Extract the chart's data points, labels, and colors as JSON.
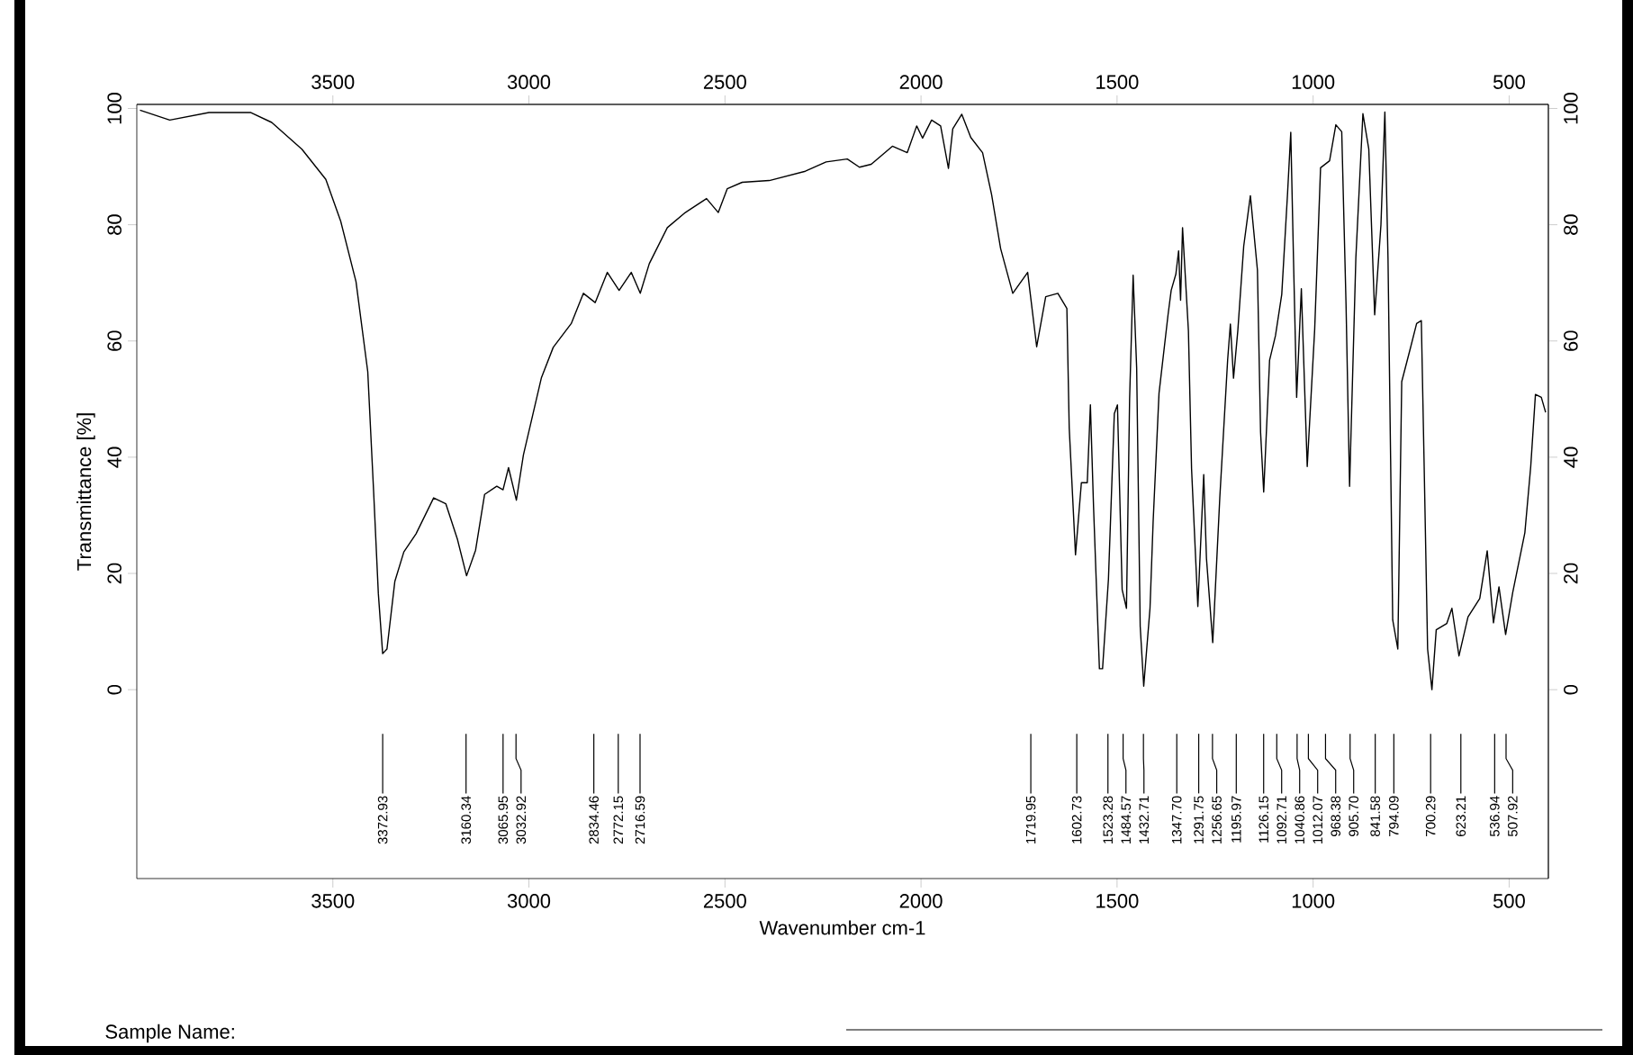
{
  "chart_data": {
    "type": "line",
    "xlabel": "Wavenumber cm-1",
    "ylabel": "Transmittance [%]",
    "xlim": [
      4000,
      400
    ],
    "xticks": [
      3500,
      3000,
      2500,
      2000,
      1500,
      1000,
      500
    ],
    "x2lim": [
      4000,
      400
    ],
    "x2ticks": [
      3500,
      3000,
      2500,
      2000,
      1500,
      1000,
      500
    ],
    "ylim": [
      -32.5,
      100.7
    ],
    "yticks": [
      0,
      20,
      40,
      60,
      80,
      100
    ],
    "y2lim": [
      -32.5,
      100.7
    ],
    "y2ticks": [
      0,
      20,
      40,
      60,
      80,
      100
    ],
    "color": "#000000",
    "x": [
      3992,
      3916,
      3816,
      3709,
      3656,
      3579,
      3518,
      3480,
      3441,
      3411,
      3396,
      3384,
      3373,
      3362,
      3342,
      3319,
      3288,
      3243,
      3212,
      3182,
      3159,
      3136,
      3113,
      3082,
      3066,
      3052,
      3032,
      3014,
      2968,
      2938,
      2892,
      2861,
      2831,
      2800,
      2770,
      2739,
      2716,
      2693,
      2647,
      2601,
      2547,
      2517,
      2494,
      2456,
      2387,
      2295,
      2242,
      2188,
      2157,
      2127,
      2073,
      2035,
      2011,
      1996,
      1973,
      1950,
      1930,
      1919,
      1896,
      1873,
      1843,
      1820,
      1797,
      1766,
      1728,
      1705,
      1682,
      1651,
      1628,
      1622,
      1606,
      1591,
      1576,
      1568,
      1560,
      1545,
      1537,
      1522,
      1507,
      1499,
      1487,
      1476,
      1468,
      1459,
      1450,
      1441,
      1432,
      1416,
      1408,
      1393,
      1370,
      1362,
      1350,
      1343,
      1338,
      1333,
      1318,
      1310,
      1294,
      1279,
      1272,
      1256,
      1238,
      1218,
      1211,
      1203,
      1192,
      1177,
      1160,
      1142,
      1134,
      1126,
      1111,
      1096,
      1080,
      1065,
      1057,
      1050,
      1042,
      1030,
      1015,
      996,
      981,
      958,
      942,
      927,
      916,
      907,
      891,
      873,
      858,
      843,
      827,
      817,
      809,
      797,
      784,
      774,
      751,
      736,
      724,
      717,
      708,
      697,
      686,
      659,
      646,
      628,
      605,
      575,
      556,
      540,
      526,
      509,
      491,
      460,
      445,
      433,
      418,
      407
    ],
    "values": [
      99.7,
      98,
      99.3,
      99.3,
      97.6,
      93,
      87.8,
      80.6,
      70.2,
      54.7,
      34,
      16.5,
      6.2,
      7,
      18.6,
      23.7,
      26.8,
      33,
      32,
      25.8,
      19.6,
      24,
      33.6,
      35,
      34.4,
      38.2,
      32.6,
      40.4,
      53.7,
      58.9,
      63,
      68.2,
      66.6,
      71.8,
      68.7,
      71.8,
      68.2,
      73.3,
      79.5,
      82.1,
      84.5,
      82.1,
      86.2,
      87.3,
      87.6,
      89.2,
      90.8,
      91.3,
      89.9,
      90.4,
      93.5,
      92.4,
      97,
      94.9,
      98,
      97,
      89.7,
      96.5,
      99,
      95,
      92.4,
      85.2,
      75.9,
      68.2,
      71.8,
      59,
      67.6,
      68.2,
      65.6,
      45,
      23.2,
      35.6,
      35.6,
      49,
      31.5,
      3.6,
      3.6,
      19,
      47.5,
      49,
      17.2,
      14,
      50.1,
      71.3,
      55.3,
      10.9,
      0.6,
      14,
      28.9,
      51,
      64.5,
      68.7,
      71.5,
      75.5,
      67,
      79.5,
      61.7,
      38,
      14.3,
      37,
      22.6,
      8.1,
      33,
      56.7,
      62.9,
      53.6,
      61.8,
      76.3,
      85,
      72.2,
      44.3,
      34,
      56.7,
      60.9,
      68,
      85.6,
      95.9,
      74,
      50.3,
      69,
      38.4,
      62,
      89.8,
      91,
      97.2,
      96,
      66.2,
      35,
      74.3,
      99.1,
      93,
      64.5,
      80,
      99.4,
      74.2,
      12,
      7,
      53,
      59,
      63,
      63.5,
      39.2,
      7,
      0,
      10.3,
      11.4,
      14,
      5.8,
      12.5,
      15.7,
      23.9,
      11.5,
      17.7,
      9.5,
      16.7,
      27,
      38.4,
      50.8,
      50.3,
      47.7
    ],
    "annotations": [
      {
        "text": "3372.93",
        "x": 3372.93
      },
      {
        "text": "3160.34",
        "x": 3160.34
      },
      {
        "text": "3065.95",
        "x": 3065.95
      },
      {
        "text": "3032.92",
        "x": 3032.92
      },
      {
        "text": "2834.46",
        "x": 2834.46
      },
      {
        "text": "2772.15",
        "x": 2772.15
      },
      {
        "text": "2716.59",
        "x": 2716.59
      },
      {
        "text": "1719.95",
        "x": 1719.95
      },
      {
        "text": "1602.73",
        "x": 1602.73
      },
      {
        "text": "1523.28",
        "x": 1523.28
      },
      {
        "text": "1484.57",
        "x": 1484.57
      },
      {
        "text": "1432.71",
        "x": 1432.71
      },
      {
        "text": "1347.70",
        "x": 1347.7
      },
      {
        "text": "1291.75",
        "x": 1291.75
      },
      {
        "text": "1256.65",
        "x": 1256.65
      },
      {
        "text": "1195.97",
        "x": 1195.97
      },
      {
        "text": "1126.15",
        "x": 1126.15
      },
      {
        "text": "1092.71",
        "x": 1092.71
      },
      {
        "text": "1040.86",
        "x": 1040.86
      },
      {
        "text": "1012.07",
        "x": 1012.07
      },
      {
        "text": "968.38",
        "x": 968.38
      },
      {
        "text": "905.70",
        "x": 905.7
      },
      {
        "text": "841.58",
        "x": 841.58
      },
      {
        "text": "794.09",
        "x": 794.09
      },
      {
        "text": "700.29",
        "x": 700.29
      },
      {
        "text": "623.21",
        "x": 623.21
      },
      {
        "text": "536.94",
        "x": 536.94
      },
      {
        "text": "507.92",
        "x": 507.92
      },
      "Sample Name:"
    ]
  }
}
